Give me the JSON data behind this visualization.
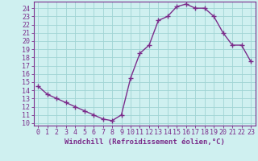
{
  "x": [
    0,
    1,
    2,
    3,
    4,
    5,
    6,
    7,
    8,
    9,
    10,
    11,
    12,
    13,
    14,
    15,
    16,
    17,
    18,
    19,
    20,
    21,
    22,
    23
  ],
  "y": [
    14.5,
    13.5,
    13.0,
    12.5,
    12.0,
    11.5,
    11.0,
    10.5,
    10.3,
    11.0,
    15.5,
    18.5,
    19.5,
    22.5,
    23.0,
    24.2,
    24.5,
    24.0,
    24.0,
    23.0,
    21.0,
    19.5,
    19.5,
    17.5
  ],
  "line_color": "#7b2d8b",
  "marker": "+",
  "marker_size": 4,
  "line_width": 1.0,
  "bg_color": "#cff0f0",
  "grid_color": "#a0d4d4",
  "xlabel": "Windchill (Refroidissement éolien,°C)",
  "ylabel_ticks": [
    10,
    11,
    12,
    13,
    14,
    15,
    16,
    17,
    18,
    19,
    20,
    21,
    22,
    23,
    24
  ],
  "xlim": [
    -0.5,
    23.5
  ],
  "ylim": [
    9.7,
    24.8
  ],
  "xlabel_fontsize": 6.5,
  "tick_fontsize": 6,
  "xlabel_color": "#7b2d8b",
  "tick_color": "#7b2d8b",
  "spine_color": "#7b2d8b"
}
